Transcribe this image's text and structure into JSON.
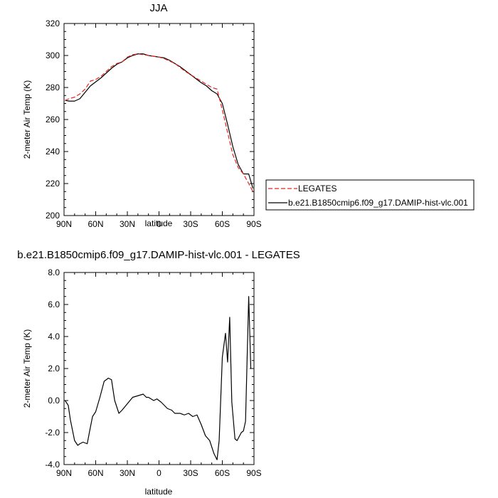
{
  "chart_data": [
    {
      "type": "line",
      "title": "JJA",
      "xlabel": "latitude",
      "ylabel": "2-meter Air Temp (K)",
      "xlim": [
        90,
        -90
      ],
      "ylim": [
        200,
        320
      ],
      "xticks": [
        90,
        60,
        30,
        0,
        -30,
        -60,
        -90
      ],
      "xtick_labels": [
        "90N",
        "60N",
        "30N",
        "0",
        "30S",
        "60S",
        "90S"
      ],
      "yticks": [
        200,
        220,
        240,
        260,
        280,
        300,
        320
      ],
      "ytick_labels": [
        "200",
        "220",
        "240",
        "260",
        "280",
        "300",
        "320"
      ],
      "legend": {
        "placement": "outside-right"
      },
      "series": [
        {
          "name": "LEGATES",
          "color": "#e8251f",
          "dash": true,
          "x": [
            89,
            85,
            80,
            75,
            70,
            65,
            60,
            55,
            50,
            45,
            40,
            35,
            30,
            25,
            20,
            15,
            10,
            5,
            0,
            -5,
            -10,
            -15,
            -20,
            -25,
            -30,
            -35,
            -40,
            -45,
            -50,
            -55,
            -60,
            -65,
            -70,
            -75,
            -80,
            -85,
            -89
          ],
          "y": [
            272,
            273,
            274,
            276,
            279,
            284,
            285,
            287,
            290,
            293,
            295,
            296,
            299,
            300.5,
            301,
            300.5,
            300,
            299.5,
            299,
            298,
            296.5,
            295,
            292.5,
            290,
            288,
            286,
            284,
            282,
            280,
            279,
            266,
            252,
            238,
            230,
            226,
            220,
            215
          ]
        },
        {
          "name": "b.e21.B1850cmip6.f09_g17.DAMIP-hist-vlc.001",
          "color": "#000000",
          "dash": false,
          "x": [
            89,
            85,
            80,
            75,
            70,
            65,
            60,
            55,
            50,
            45,
            40,
            35,
            30,
            25,
            20,
            15,
            10,
            5,
            0,
            -5,
            -10,
            -15,
            -20,
            -25,
            -30,
            -35,
            -40,
            -45,
            -50,
            -55,
            -60,
            -65,
            -70,
            -75,
            -80,
            -85,
            -89
          ],
          "y": [
            272,
            271.5,
            271.5,
            273,
            277,
            281,
            283.5,
            286,
            289,
            292,
            294.5,
            296,
            298.5,
            300,
            301,
            301,
            300,
            299.5,
            299,
            298.5,
            297,
            295,
            293,
            290.5,
            288,
            285.5,
            283,
            281,
            278,
            276,
            270,
            257,
            243,
            232,
            226,
            226,
            217
          ]
        }
      ]
    },
    {
      "type": "line",
      "title": "b.e21.B1850cmip6.f09_g17.DAMIP-hist-vlc.001 - LEGATES",
      "xlabel": "latitude",
      "ylabel": "2-meter Air Temp (K)",
      "xlim": [
        90,
        -90
      ],
      "ylim": [
        -4.0,
        8.0
      ],
      "xticks": [
        90,
        60,
        30,
        0,
        -30,
        -60,
        -90
      ],
      "xtick_labels": [
        "90N",
        "60N",
        "30N",
        "0",
        "30S",
        "60S",
        "90S"
      ],
      "yticks": [
        -4,
        -2,
        0,
        2,
        4,
        6,
        8
      ],
      "ytick_labels": [
        "-4.0",
        "-2.0",
        "0.0",
        "2.0",
        "4.0",
        "6.0",
        "8.0"
      ],
      "series": [
        {
          "color": "#000000",
          "x": [
            89,
            86,
            84,
            80,
            77,
            75,
            72,
            68,
            66,
            63,
            60,
            56,
            52,
            48,
            45,
            42,
            38,
            35,
            30,
            25,
            20,
            15,
            12,
            10,
            5,
            2,
            -2,
            -5,
            -8,
            -12,
            -15,
            -20,
            -24,
            -28,
            -32,
            -36,
            -40,
            -44,
            -48,
            -52,
            -55,
            -57,
            -60,
            -63,
            -65,
            -67,
            -69,
            -72,
            -74,
            -78,
            -80,
            -82,
            -85,
            -87
          ],
          "y": [
            0.0,
            -0.3,
            -1.2,
            -2.5,
            -2.8,
            -2.7,
            -2.6,
            -2.7,
            -2.0,
            -1.0,
            -0.7,
            0.2,
            1.2,
            1.4,
            1.3,
            0.0,
            -0.8,
            -0.6,
            -0.2,
            0.2,
            0.3,
            0.4,
            0.2,
            0.2,
            0.0,
            0.1,
            -0.1,
            -0.3,
            -0.5,
            -0.6,
            -0.8,
            -0.8,
            -0.9,
            -0.8,
            -1.0,
            -0.9,
            -1.5,
            -2.2,
            -2.5,
            -3.3,
            -3.7,
            -2.5,
            2.7,
            4.2,
            2.4,
            5.2,
            -0.1,
            -2.4,
            -2.5,
            -2.0,
            -1.9,
            -1.3,
            6.5,
            2.0
          ]
        }
      ]
    }
  ]
}
